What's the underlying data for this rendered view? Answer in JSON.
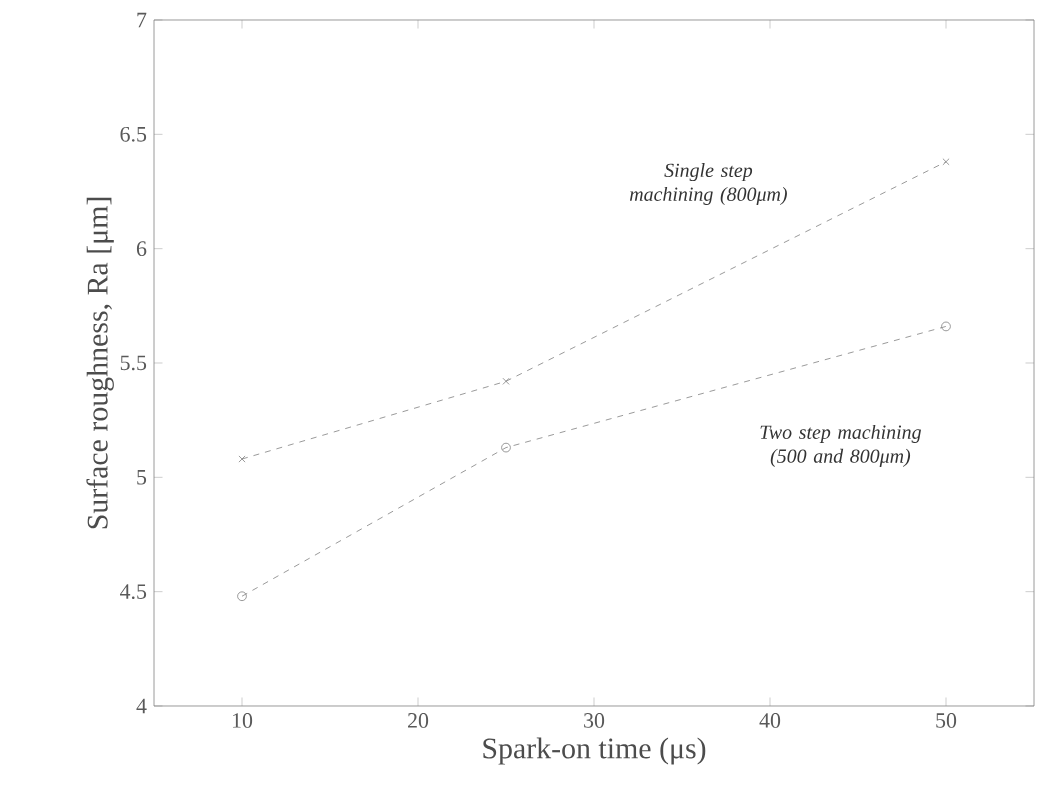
{
  "chart_data": {
    "type": "line",
    "xlabel": "Spark-on time (μs)",
    "ylabel": "Surface roughness, Ra [μm]",
    "x": [
      10,
      25,
      50
    ],
    "series": [
      {
        "name": "Single step machining (800μm)",
        "color": "#808080",
        "values": [
          5.08,
          5.42,
          6.38
        ],
        "marker": "cross"
      },
      {
        "name": "Two step machining (500 and 800μm)",
        "color": "#808080",
        "values": [
          4.48,
          5.13,
          5.66
        ],
        "marker": "circle"
      }
    ],
    "xlim": [
      5,
      55
    ],
    "ylim": [
      4,
      7
    ],
    "xticks": [
      10,
      20,
      30,
      40,
      50
    ],
    "yticks": [
      4,
      4.5,
      5,
      5.5,
      6,
      6.5,
      7
    ],
    "line_style": "dashed",
    "grid": false,
    "legend": false
  }
}
